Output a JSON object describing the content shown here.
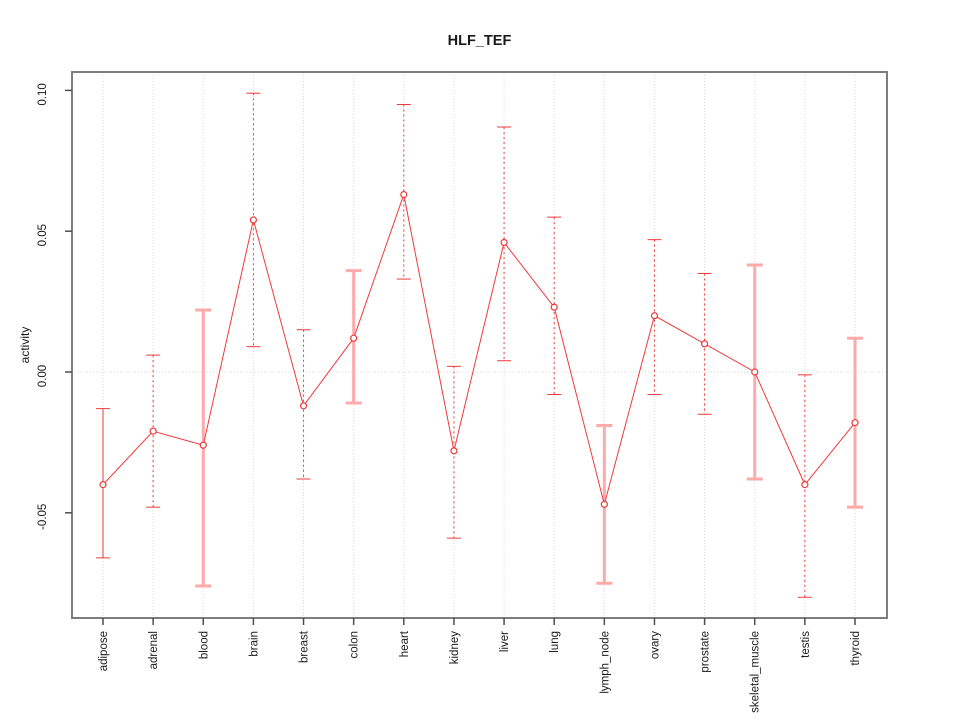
{
  "title": "HLF_TEF",
  "chart_data": {
    "type": "scatter",
    "title": "HLF_TEF",
    "xlabel": "",
    "ylabel": "activity",
    "ylim": [
      -0.087,
      0.106
    ],
    "yticks": [
      0.1,
      0.05,
      0.0,
      -0.05
    ],
    "ytick_labels": [
      "0.10",
      "0.05",
      "0.00",
      "-0.05"
    ],
    "grid": {
      "vertical": "light-gray dotted line at every category",
      "horizontal": "light-gray dotted line at y=0 only"
    },
    "legend_position": "none",
    "marker": "open-circle",
    "categories": [
      "adipose",
      "adrenal",
      "blood",
      "brain",
      "breast",
      "colon",
      "heart",
      "kidney",
      "liver",
      "lung",
      "lymph_node",
      "ovary",
      "prostate",
      "skeletal_muscle",
      "testis",
      "thyroid"
    ],
    "series": [
      {
        "name": "activity",
        "values": [
          -0.04,
          -0.021,
          -0.026,
          0.054,
          -0.012,
          0.012,
          0.063,
          -0.028,
          0.046,
          0.023,
          -0.047,
          0.02,
          0.01,
          0.0,
          -0.04,
          -0.018
        ],
        "err_low": [
          -0.066,
          -0.048,
          -0.076,
          0.009,
          -0.038,
          -0.011,
          0.033,
          -0.059,
          0.004,
          -0.008,
          -0.075,
          -0.008,
          -0.015,
          -0.038,
          -0.08,
          -0.048
        ],
        "err_high": [
          -0.013,
          0.006,
          0.022,
          0.099,
          0.015,
          0.036,
          0.095,
          0.002,
          0.087,
          0.055,
          -0.019,
          0.047,
          0.035,
          0.038,
          -0.001,
          0.012
        ],
        "bar_style": [
          "solid",
          "dotted",
          "heavy",
          "dotted",
          "dotted",
          "heavy",
          "dotted",
          "dotted",
          "dotted",
          "dotted",
          "heavy",
          "dotted",
          "dotted",
          "heavy",
          "dotted",
          "heavy"
        ]
      }
    ],
    "colors": {
      "line_red": "#ee3a3a",
      "heavy_pink": "#ffaaaa",
      "grid_gray": "#d9d9d9",
      "frame_gray": "#7d7d7d",
      "tick_gray": "#4d4d4d",
      "text_black": "#1a1a1a"
    }
  }
}
